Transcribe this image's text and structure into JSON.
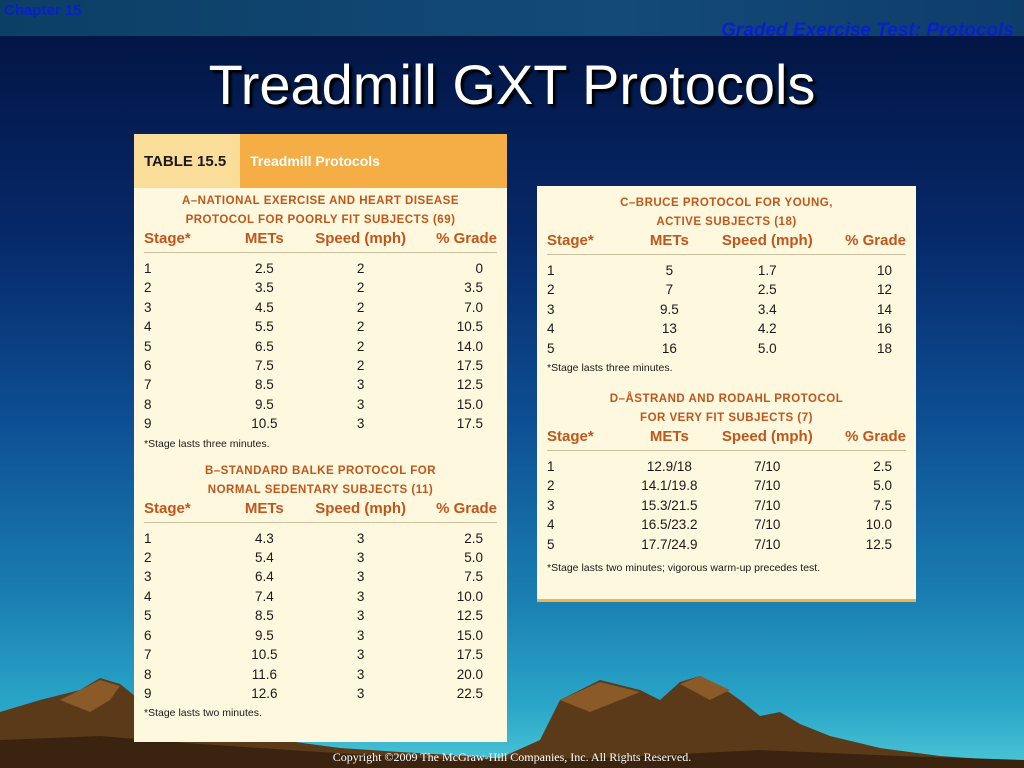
{
  "header": {
    "chapter": "Chapter 15",
    "section": "Graded Exercise Test: Protocols"
  },
  "title": "Treadmill GXT Protocols",
  "table_label": "TABLE 15.5",
  "table_caption": "Treadmill Protocols",
  "columns": [
    "Stage*",
    "METs",
    "Speed (mph)",
    "% Grade"
  ],
  "protocols": {
    "a": {
      "title_line1": "A–NATIONAL EXERCISE AND HEART DISEASE",
      "title_line2": "PROTOCOL FOR POORLY FIT SUBJECTS (69)",
      "rows": [
        [
          "1",
          "2.5",
          "2",
          "0"
        ],
        [
          "2",
          "3.5",
          "2",
          "3.5"
        ],
        [
          "3",
          "4.5",
          "2",
          "7.0"
        ],
        [
          "4",
          "5.5",
          "2",
          "10.5"
        ],
        [
          "5",
          "6.5",
          "2",
          "14.0"
        ],
        [
          "6",
          "7.5",
          "2",
          "17.5"
        ],
        [
          "7",
          "8.5",
          "3",
          "12.5"
        ],
        [
          "8",
          "9.5",
          "3",
          "15.0"
        ],
        [
          "9",
          "10.5",
          "3",
          "17.5"
        ]
      ],
      "note": "*Stage lasts three minutes."
    },
    "b": {
      "title_line1": "B–STANDARD BALKE PROTOCOL FOR",
      "title_line2": "NORMAL SEDENTARY SUBJECTS (11)",
      "rows": [
        [
          "1",
          "4.3",
          "3",
          "2.5"
        ],
        [
          "2",
          "5.4",
          "3",
          "5.0"
        ],
        [
          "3",
          "6.4",
          "3",
          "7.5"
        ],
        [
          "4",
          "7.4",
          "3",
          "10.0"
        ],
        [
          "5",
          "8.5",
          "3",
          "12.5"
        ],
        [
          "6",
          "9.5",
          "3",
          "15.0"
        ],
        [
          "7",
          "10.5",
          "3",
          "17.5"
        ],
        [
          "8",
          "11.6",
          "3",
          "20.0"
        ],
        [
          "9",
          "12.6",
          "3",
          "22.5"
        ]
      ],
      "note": "*Stage lasts two minutes."
    },
    "c": {
      "title_line1": "C–BRUCE PROTOCOL FOR YOUNG,",
      "title_line2": "ACTIVE SUBJECTS (18)",
      "rows": [
        [
          "1",
          "5",
          "1.7",
          "10"
        ],
        [
          "2",
          "7",
          "2.5",
          "12"
        ],
        [
          "3",
          "9.5",
          "3.4",
          "14"
        ],
        [
          "4",
          "13",
          "4.2",
          "16"
        ],
        [
          "5",
          "16",
          "5.0",
          "18"
        ]
      ],
      "note": "*Stage lasts three minutes."
    },
    "d": {
      "title_line1": "D–ÅSTRAND AND RODAHL PROTOCOL",
      "title_line2": "FOR VERY FIT SUBJECTS (7)",
      "rows": [
        [
          "1",
          "12.9/18",
          "7/10",
          "2.5"
        ],
        [
          "2",
          "14.1/19.8",
          "7/10",
          "5.0"
        ],
        [
          "3",
          "15.3/21.5",
          "7/10",
          "7.5"
        ],
        [
          "4",
          "16.5/23.2",
          "7/10",
          "10.0"
        ],
        [
          "5",
          "17.7/24.9",
          "7/10",
          "12.5"
        ]
      ],
      "note": "*Stage lasts two minutes; vigorous warm-up precedes test."
    }
  },
  "footer": "Copyright ©2009 The McGraw-Hill Companies, Inc. All Rights Reserved.",
  "colors": {
    "accent": "#f5ad45",
    "section_title": "#c0561c",
    "table_bg": "#fdf8de"
  }
}
